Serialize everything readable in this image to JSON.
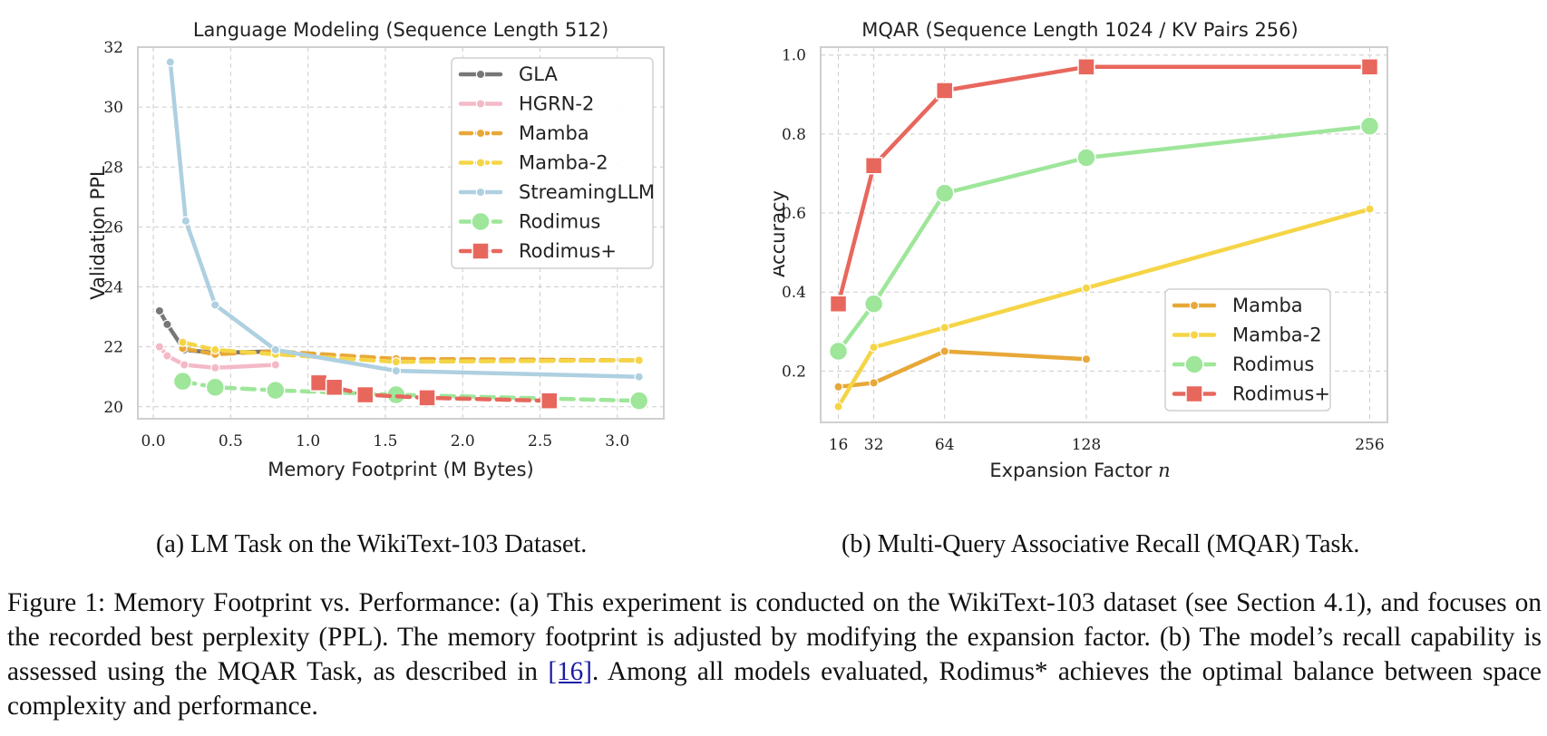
{
  "chart_data": [
    {
      "id": "a",
      "type": "line",
      "title": "Language Modeling (Sequence Length 512)",
      "xlabel": "Memory Footprint (M Bytes)",
      "ylabel": "Validation PPL",
      "xlim": [
        -0.1,
        3.3
      ],
      "ylim": [
        19.6,
        32.0
      ],
      "xticks": [
        0.0,
        0.5,
        1.0,
        1.5,
        2.0,
        2.5,
        3.0
      ],
      "xtick_labels": [
        "0.0",
        "0.5",
        "1.0",
        "1.5",
        "2.0",
        "2.5",
        "3.0"
      ],
      "yticks": [
        20,
        22,
        24,
        26,
        28,
        30,
        32
      ],
      "ytick_labels": [
        "20",
        "22",
        "24",
        "26",
        "28",
        "30",
        "32"
      ],
      "grid": true,
      "legend_position": "top-right",
      "series": [
        {
          "name": "GLA",
          "color": "#777777",
          "dash": "solid",
          "marker": "dot",
          "x": [
            0.04,
            0.09,
            0.2,
            0.4,
            0.79
          ],
          "y": [
            23.2,
            22.75,
            21.9,
            21.8,
            21.85
          ]
        },
        {
          "name": "HGRN-2",
          "color": "#f4b9c7",
          "dash": "solid",
          "marker": "dot",
          "x": [
            0.04,
            0.09,
            0.2,
            0.4,
            0.79
          ],
          "y": [
            22.0,
            21.7,
            21.4,
            21.3,
            21.4
          ]
        },
        {
          "name": "Mamba",
          "color": "#e8a838",
          "dash": "dashed",
          "marker": "dot",
          "x": [
            0.19,
            0.4,
            0.79,
            1.57,
            3.14
          ],
          "y": [
            21.95,
            21.75,
            21.85,
            21.6,
            21.55
          ]
        },
        {
          "name": "Mamba-2",
          "color": "#f5d547",
          "dash": "dashed",
          "marker": "dot",
          "x": [
            0.19,
            0.4,
            0.79,
            1.57,
            3.14
          ],
          "y": [
            22.15,
            21.9,
            21.75,
            21.5,
            21.55
          ]
        },
        {
          "name": "StreamingLLM",
          "color": "#aed0e0",
          "dash": "solid",
          "marker": "dot",
          "x": [
            0.11,
            0.21,
            0.4,
            0.79,
            1.57,
            3.14
          ],
          "y": [
            31.5,
            26.2,
            23.4,
            21.9,
            21.2,
            21.0
          ]
        },
        {
          "name": "Rodimus",
          "color": "#9ee69a",
          "dash": "dashed",
          "marker": "circle",
          "x": [
            0.19,
            0.4,
            0.79,
            1.57,
            3.14
          ],
          "y": [
            20.85,
            20.65,
            20.55,
            20.4,
            20.2
          ]
        },
        {
          "name": "Rodimus+",
          "color": "#e8675d",
          "dash": "dashed",
          "marker": "square",
          "x": [
            1.07,
            1.17,
            1.37,
            1.77,
            2.56
          ],
          "y": [
            20.8,
            20.65,
            20.4,
            20.3,
            20.2
          ]
        }
      ]
    },
    {
      "id": "b",
      "type": "line",
      "title": "MQAR (Sequence Length 1024 / KV Pairs 256)",
      "xlabel": "Expansion Factor",
      "xlabel_var": "n",
      "ylabel": "Accuracy",
      "xlim": [
        8,
        264
      ],
      "ylim": [
        0.07,
        1.02
      ],
      "xticks": [
        16,
        32,
        64,
        128,
        256
      ],
      "xtick_labels": [
        "16",
        "32",
        "64",
        "128",
        "256"
      ],
      "yticks": [
        0.2,
        0.4,
        0.6,
        0.8,
        1.0
      ],
      "ytick_labels": [
        "0.2",
        "0.4",
        "0.6",
        "0.8",
        "1.0"
      ],
      "grid": true,
      "legend_position": "bottom-right",
      "series": [
        {
          "name": "Mamba",
          "color": "#e8a838",
          "dash": "solid",
          "marker": "dot",
          "x": [
            16,
            32,
            64,
            128
          ],
          "y": [
            0.16,
            0.17,
            0.25,
            0.23
          ]
        },
        {
          "name": "Mamba-2",
          "color": "#f5d547",
          "dash": "solid",
          "marker": "dot",
          "x": [
            16,
            32,
            64,
            128,
            256
          ],
          "y": [
            0.11,
            0.26,
            0.31,
            0.41,
            0.61
          ]
        },
        {
          "name": "Rodimus",
          "color": "#9ee69a",
          "dash": "solid",
          "marker": "circle",
          "x": [
            16,
            32,
            64,
            128,
            256
          ],
          "y": [
            0.25,
            0.37,
            0.65,
            0.74,
            0.82
          ]
        },
        {
          "name": "Rodimus+",
          "color": "#e8675d",
          "dash": "solid",
          "marker": "square",
          "x": [
            16,
            32,
            64,
            128,
            256
          ],
          "y": [
            0.37,
            0.72,
            0.91,
            0.97,
            0.97
          ]
        }
      ]
    }
  ],
  "captions": {
    "a": "(a) LM Task on the WikiText-103 Dataset.",
    "b": "(b) Multi-Query Associative Recall (MQAR) Task."
  },
  "figure_caption": {
    "before_ref": "Figure 1: Memory Footprint vs. Performance: (a) This experiment is conducted on the WikiText-103 dataset (see Section 4.1), and focuses on the recorded best perplexity (PPL). The memory footprint is adjusted by modifying the expansion factor. (b) The model’s recall capability is assessed using the MQAR Task, as described in ",
    "ref": "[16]",
    "after_ref": ". Among all models evaluated, Rodimus* achieves the optimal balance between space complexity and performance."
  }
}
